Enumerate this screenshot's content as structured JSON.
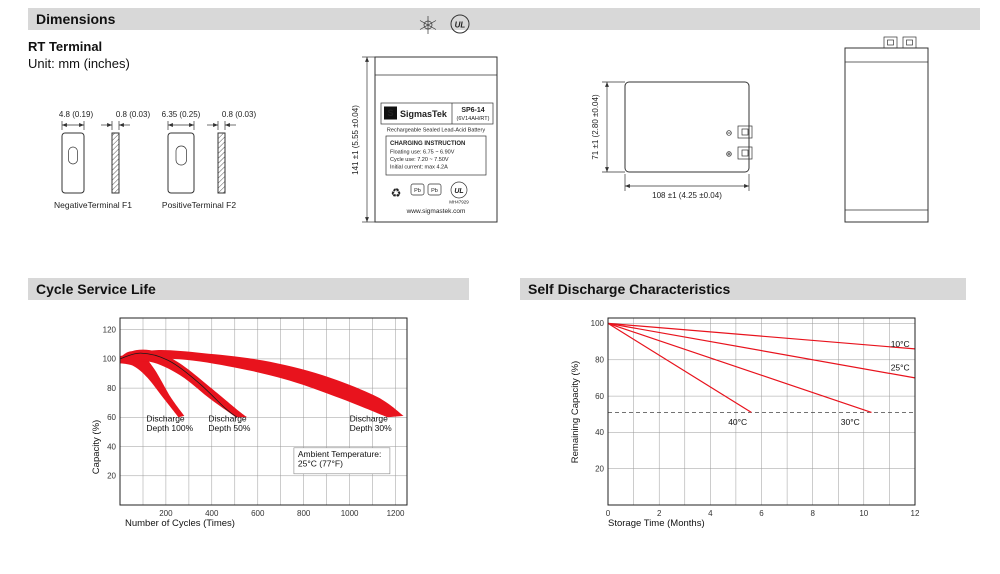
{
  "sections": {
    "dimensions": "Dimensions",
    "cycle_service_life": "Cycle Service Life",
    "self_discharge": "Self Discharge Characteristics"
  },
  "dimensions": {
    "subtitle": "RT Terminal",
    "unit": "Unit: mm (inches)",
    "terminals": {
      "neg_width": "4.8 (0.19)",
      "neg_thickness": "0.8 (0.03)",
      "pos_width": "6.35 (0.25)",
      "pos_thickness": "0.8 (0.03)",
      "neg_label": "NegativeTerminal F1",
      "pos_label": "PositiveTerminal F2"
    },
    "certification": {
      "ul": "UL"
    },
    "front_view": {
      "height_dim": "141 ±1 (5.55 ±0.04)",
      "brand": "SigmasTek",
      "brand_initial": "S",
      "model": "SP6-14",
      "spec": "(6V14AH/RT)",
      "battery_type": "Rechargeable Sealed Lead-Acid Battery",
      "charging_title": "CHARGING INSTRUCTION",
      "charging_lines": [
        "Floating use: 6.75 ~ 6.90V",
        "Cycle use: 7.20 ~ 7.50V",
        "Initial current: max 4.2A"
      ],
      "recycle_icon": "♻",
      "pb": "Pb",
      "ul": "UL",
      "ul_code": "MH47929",
      "website": "www.sigmastek.com"
    },
    "top_view": {
      "height_dim": "71 ±1 (2.80 ±0.04)",
      "width_dim": "108 ±1 (4.25 ±0.04)",
      "neg_symbol": "⊖",
      "pos_symbol": "⊕"
    }
  },
  "chart_data": [
    {
      "id": "cycle-service-life",
      "type": "area",
      "title": "Cycle Service Life",
      "xlabel": "Number of Cycles (Times)",
      "ylabel": "Capacity (%)",
      "xlim": [
        0,
        1250
      ],
      "ylim": [
        0,
        128
      ],
      "x_ticks": [
        200,
        400,
        600,
        800,
        1000,
        1200
      ],
      "y_ticks": [
        20,
        40,
        60,
        80,
        100,
        120
      ],
      "grid": {
        "x_step": 100,
        "y_step": 20
      },
      "band_color": "#e8131d",
      "bands": [
        {
          "name": "Discharge Depth 100%",
          "top": [
            [
              0,
              101
            ],
            [
              40,
              105
            ],
            [
              90,
              104
            ],
            [
              150,
              93
            ],
            [
              220,
              74
            ],
            [
              280,
              61
            ]
          ],
          "bottom": [
            [
              255,
              60
            ],
            [
              190,
              73
            ],
            [
              120,
              87
            ],
            [
              60,
              95
            ],
            [
              0,
              97
            ]
          ]
        },
        {
          "name": "Discharge Depth 50%",
          "top": [
            [
              0,
              101
            ],
            [
              70,
              106
            ],
            [
              160,
              105
            ],
            [
              260,
              97
            ],
            [
              390,
              81
            ],
            [
              520,
              64
            ],
            [
              555,
              60
            ]
          ],
          "bottom": [
            [
              505,
              60
            ],
            [
              390,
              73
            ],
            [
              260,
              89
            ],
            [
              130,
              98
            ],
            [
              0,
              97
            ]
          ]
        },
        {
          "name": "Discharge Depth 30%",
          "top": [
            [
              0,
              102
            ],
            [
              160,
              106
            ],
            [
              360,
              104
            ],
            [
              620,
              99
            ],
            [
              880,
              89
            ],
            [
              1120,
              74
            ],
            [
              1235,
              61
            ]
          ],
          "bottom": [
            [
              1165,
              60
            ],
            [
              960,
              73
            ],
            [
              720,
              86
            ],
            [
              470,
              95
            ],
            [
              230,
              100
            ],
            [
              0,
              98
            ]
          ]
        }
      ],
      "curves": [
        {
          "color": "#1a1a1a",
          "points": [
            [
              0,
              100
            ],
            [
              90,
              104
            ],
            [
              210,
              99
            ],
            [
              340,
              84
            ],
            [
              460,
              66
            ],
            [
              510,
              60
            ]
          ]
        }
      ],
      "annotations": [
        {
          "text": "Discharge\nDepth 100%",
          "x": 115,
          "y": 57
        },
        {
          "text": "Discharge\nDepth 50%",
          "x": 385,
          "y": 57
        },
        {
          "text": "Discharge\nDepth 30%",
          "x": 1000,
          "y": 57
        },
        {
          "text": "Ambient Temperature:\n25°C (77°F)",
          "x": 775,
          "y": 33,
          "box": true
        }
      ]
    },
    {
      "id": "self-discharge-characteristics",
      "type": "line",
      "title": "Self Discharge Characteristics",
      "xlabel": "Storage Time (Months)",
      "ylabel": "Remaining Capacity (%)",
      "xlim": [
        0,
        12
      ],
      "ylim": [
        0,
        103
      ],
      "x_ticks": [
        0,
        2,
        4,
        6,
        8,
        10,
        12
      ],
      "y_ticks": [
        20,
        40,
        60,
        80,
        100
      ],
      "grid": {
        "x_step": 1,
        "y_step": 20
      },
      "series_color": "#e8131d",
      "series": [
        {
          "name": "10°C",
          "points": [
            [
              0,
              100
            ],
            [
              12,
              86
            ]
          ],
          "label_pos": [
            11.05,
            87
          ]
        },
        {
          "name": "25°C",
          "points": [
            [
              0,
              100
            ],
            [
              12,
              70
            ]
          ],
          "label_pos": [
            11.05,
            74
          ]
        },
        {
          "name": "30°C",
          "points": [
            [
              0,
              100
            ],
            [
              10.3,
              51
            ]
          ],
          "label_pos": [
            9.1,
            44
          ]
        },
        {
          "name": "40°C",
          "points": [
            [
              0,
              100
            ],
            [
              5.6,
              51
            ]
          ],
          "label_pos": [
            4.7,
            44
          ]
        }
      ],
      "ref_line": {
        "y": 51
      }
    }
  ]
}
